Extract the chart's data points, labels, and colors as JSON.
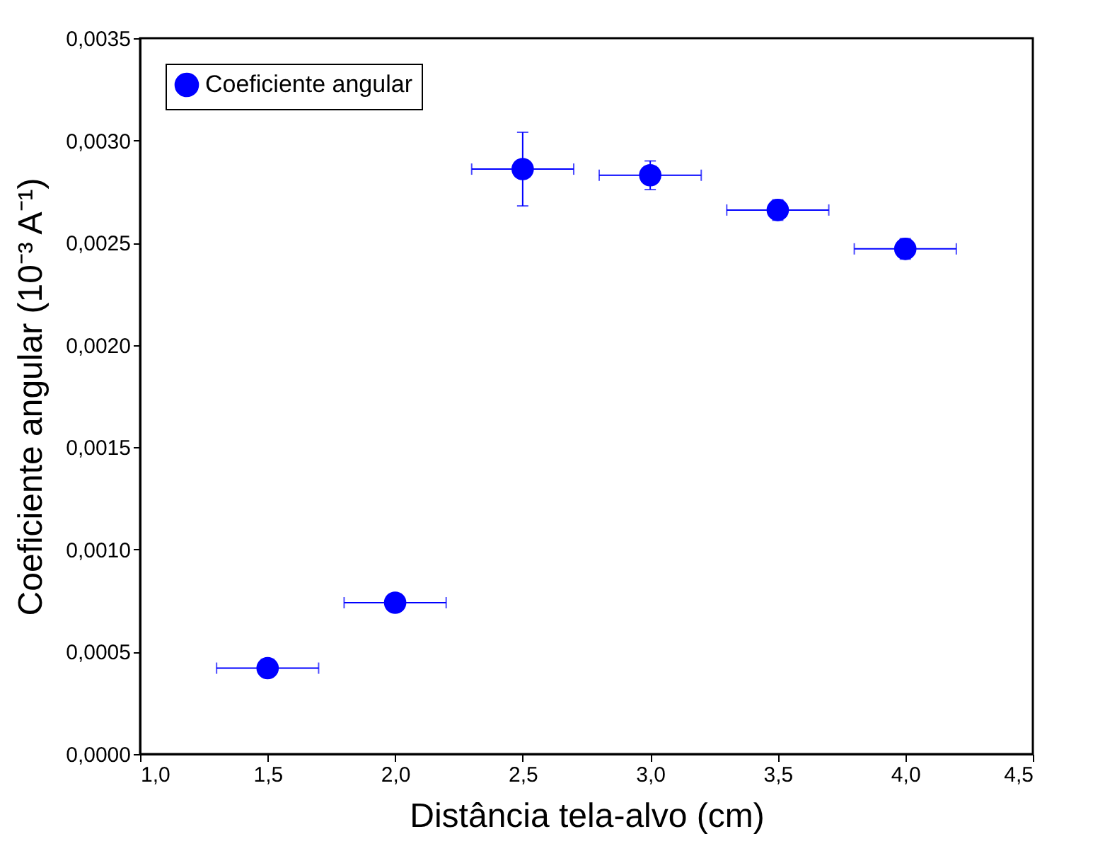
{
  "chart_data": {
    "type": "scatter",
    "xlabel": "Distância tela-alvo (cm)",
    "ylabel": "Coeficiente angular (10⁻³ A⁻¹)",
    "x": [
      1.5,
      2.0,
      2.5,
      3.0,
      3.5,
      4.0
    ],
    "series": [
      {
        "name": "Coeficiente angular",
        "color": "#0000ff",
        "values": [
          0.00042,
          0.00074,
          0.00286,
          0.00283,
          0.00266,
          0.00247
        ],
        "errors": [
          null,
          null,
          0.00018,
          7e-05,
          5e-05,
          5e-05
        ],
        "xerrors": [
          0.2,
          0.2,
          0.2,
          0.2,
          0.2,
          0.2
        ]
      }
    ],
    "xlim": [
      1.0,
      4.5
    ],
    "xticks": [
      {
        "value": 1.0,
        "label": "1,0"
      },
      {
        "value": 1.5,
        "label": "1,5"
      },
      {
        "value": 2.0,
        "label": "2,0"
      },
      {
        "value": 2.5,
        "label": "2,5"
      },
      {
        "value": 3.0,
        "label": "3,0"
      },
      {
        "value": 3.5,
        "label": "3,5"
      },
      {
        "value": 4.0,
        "label": "4,0"
      },
      {
        "value": 4.5,
        "label": "4,5"
      }
    ],
    "ylim": [
      0,
      0.0035
    ],
    "yticks": [
      {
        "value": 0,
        "label": "0,0000"
      },
      {
        "value": 0.0005,
        "label": "0,0005"
      },
      {
        "value": 0.001,
        "label": "0,0010"
      },
      {
        "value": 0.0015,
        "label": "0,0015"
      },
      {
        "value": 0.002,
        "label": "0,0020"
      },
      {
        "value": 0.0025,
        "label": "0,0025"
      },
      {
        "value": 0.003,
        "label": "0,0030"
      },
      {
        "value": 0.0035,
        "label": "0,0035"
      }
    ],
    "grid": false,
    "legend": "top left",
    "marker": "circle"
  }
}
